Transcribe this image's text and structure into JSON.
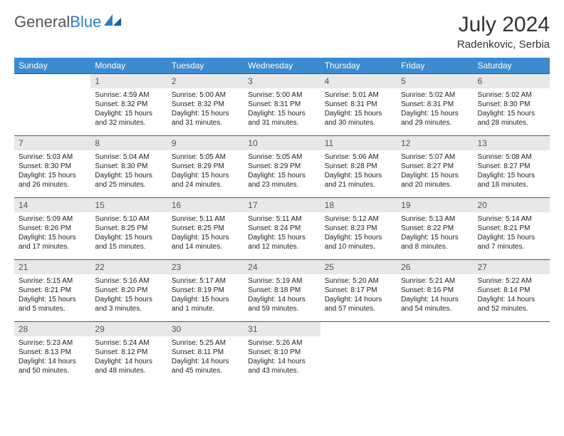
{
  "brand": {
    "word1": "General",
    "word2": "Blue"
  },
  "title": "July 2024",
  "location": "Radenkovic, Serbia",
  "colors": {
    "header_bg": "#3a8bd0",
    "header_text": "#ffffff",
    "daynum_bg": "#e8e8e8",
    "cell_border": "#2d5b8a",
    "brand_gray": "#555555",
    "brand_blue": "#2f7ec2",
    "page_bg": "#ffffff"
  },
  "day_labels": [
    "Sunday",
    "Monday",
    "Tuesday",
    "Wednesday",
    "Thursday",
    "Friday",
    "Saturday"
  ],
  "start_offset": 1,
  "days": [
    {
      "n": 1,
      "sunrise": "4:59 AM",
      "sunset": "8:32 PM",
      "daylight": "15 hours and 32 minutes."
    },
    {
      "n": 2,
      "sunrise": "5:00 AM",
      "sunset": "8:32 PM",
      "daylight": "15 hours and 31 minutes."
    },
    {
      "n": 3,
      "sunrise": "5:00 AM",
      "sunset": "8:31 PM",
      "daylight": "15 hours and 31 minutes."
    },
    {
      "n": 4,
      "sunrise": "5:01 AM",
      "sunset": "8:31 PM",
      "daylight": "15 hours and 30 minutes."
    },
    {
      "n": 5,
      "sunrise": "5:02 AM",
      "sunset": "8:31 PM",
      "daylight": "15 hours and 29 minutes."
    },
    {
      "n": 6,
      "sunrise": "5:02 AM",
      "sunset": "8:30 PM",
      "daylight": "15 hours and 28 minutes."
    },
    {
      "n": 7,
      "sunrise": "5:03 AM",
      "sunset": "8:30 PM",
      "daylight": "15 hours and 26 minutes."
    },
    {
      "n": 8,
      "sunrise": "5:04 AM",
      "sunset": "8:30 PM",
      "daylight": "15 hours and 25 minutes."
    },
    {
      "n": 9,
      "sunrise": "5:05 AM",
      "sunset": "8:29 PM",
      "daylight": "15 hours and 24 minutes."
    },
    {
      "n": 10,
      "sunrise": "5:05 AM",
      "sunset": "8:29 PM",
      "daylight": "15 hours and 23 minutes."
    },
    {
      "n": 11,
      "sunrise": "5:06 AM",
      "sunset": "8:28 PM",
      "daylight": "15 hours and 21 minutes."
    },
    {
      "n": 12,
      "sunrise": "5:07 AM",
      "sunset": "8:27 PM",
      "daylight": "15 hours and 20 minutes."
    },
    {
      "n": 13,
      "sunrise": "5:08 AM",
      "sunset": "8:27 PM",
      "daylight": "15 hours and 18 minutes."
    },
    {
      "n": 14,
      "sunrise": "5:09 AM",
      "sunset": "8:26 PM",
      "daylight": "15 hours and 17 minutes."
    },
    {
      "n": 15,
      "sunrise": "5:10 AM",
      "sunset": "8:25 PM",
      "daylight": "15 hours and 15 minutes."
    },
    {
      "n": 16,
      "sunrise": "5:11 AM",
      "sunset": "8:25 PM",
      "daylight": "15 hours and 14 minutes."
    },
    {
      "n": 17,
      "sunrise": "5:11 AM",
      "sunset": "8:24 PM",
      "daylight": "15 hours and 12 minutes."
    },
    {
      "n": 18,
      "sunrise": "5:12 AM",
      "sunset": "8:23 PM",
      "daylight": "15 hours and 10 minutes."
    },
    {
      "n": 19,
      "sunrise": "5:13 AM",
      "sunset": "8:22 PM",
      "daylight": "15 hours and 8 minutes."
    },
    {
      "n": 20,
      "sunrise": "5:14 AM",
      "sunset": "8:21 PM",
      "daylight": "15 hours and 7 minutes."
    },
    {
      "n": 21,
      "sunrise": "5:15 AM",
      "sunset": "8:21 PM",
      "daylight": "15 hours and 5 minutes."
    },
    {
      "n": 22,
      "sunrise": "5:16 AM",
      "sunset": "8:20 PM",
      "daylight": "15 hours and 3 minutes."
    },
    {
      "n": 23,
      "sunrise": "5:17 AM",
      "sunset": "8:19 PM",
      "daylight": "15 hours and 1 minute."
    },
    {
      "n": 24,
      "sunrise": "5:19 AM",
      "sunset": "8:18 PM",
      "daylight": "14 hours and 59 minutes."
    },
    {
      "n": 25,
      "sunrise": "5:20 AM",
      "sunset": "8:17 PM",
      "daylight": "14 hours and 57 minutes."
    },
    {
      "n": 26,
      "sunrise": "5:21 AM",
      "sunset": "8:16 PM",
      "daylight": "14 hours and 54 minutes."
    },
    {
      "n": 27,
      "sunrise": "5:22 AM",
      "sunset": "8:14 PM",
      "daylight": "14 hours and 52 minutes."
    },
    {
      "n": 28,
      "sunrise": "5:23 AM",
      "sunset": "8:13 PM",
      "daylight": "14 hours and 50 minutes."
    },
    {
      "n": 29,
      "sunrise": "5:24 AM",
      "sunset": "8:12 PM",
      "daylight": "14 hours and 48 minutes."
    },
    {
      "n": 30,
      "sunrise": "5:25 AM",
      "sunset": "8:11 PM",
      "daylight": "14 hours and 45 minutes."
    },
    {
      "n": 31,
      "sunrise": "5:26 AM",
      "sunset": "8:10 PM",
      "daylight": "14 hours and 43 minutes."
    }
  ],
  "labels": {
    "sunrise": "Sunrise:",
    "sunset": "Sunset:",
    "daylight": "Daylight:"
  }
}
